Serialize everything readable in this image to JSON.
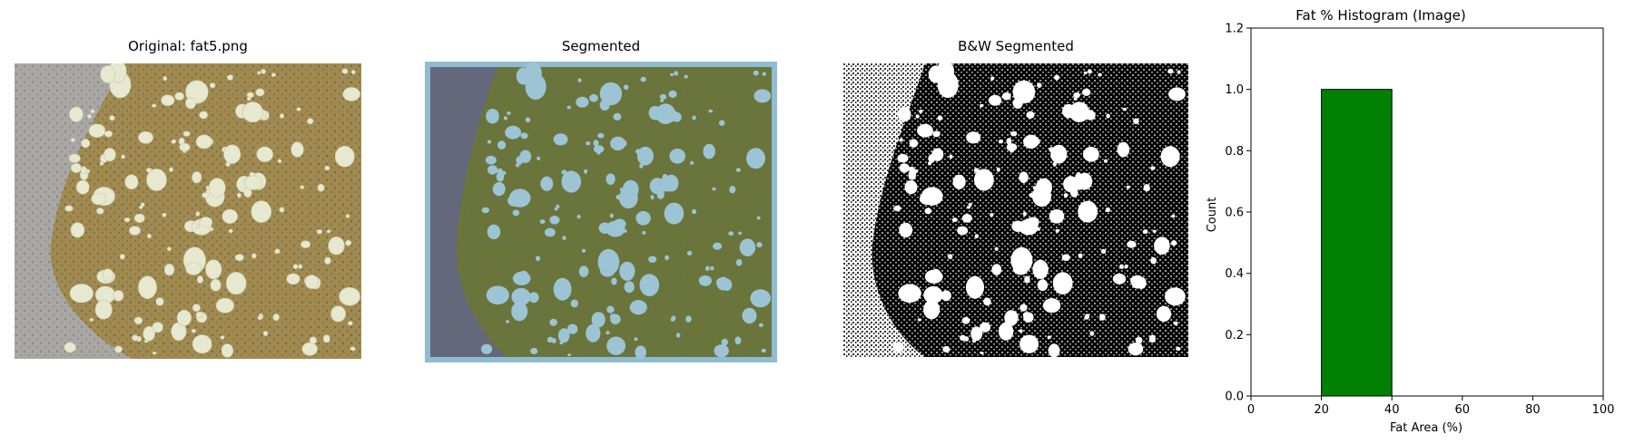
{
  "panels": {
    "original": {
      "title": "Original: fat5.png",
      "image": "liver-histology-original"
    },
    "segmented": {
      "title": "Segmented",
      "image": "liver-histology-segmented",
      "colors": {
        "background": "#6b7634",
        "border": "#8fbcd2",
        "fat": "#9cc4d4",
        "other": "#5e5fb0"
      }
    },
    "bw": {
      "title": "B&W Segmented",
      "image": "liver-histology-bw-mask"
    }
  },
  "chart_data": {
    "type": "bar",
    "title": "Fat % Histogram (Image)",
    "xlabel": "Fat Area (%)",
    "ylabel": "Count",
    "bins": [
      [
        20,
        40
      ]
    ],
    "values": [
      1.0
    ],
    "xlim": [
      0,
      100
    ],
    "ylim": [
      0,
      1.2
    ],
    "xticks": [
      "0",
      "20",
      "40",
      "60",
      "80",
      "100"
    ],
    "yticks": [
      "0.0",
      "0.2",
      "0.4",
      "0.6",
      "0.8",
      "1.0",
      "1.2"
    ],
    "bar_color": "#008000",
    "grid": false
  }
}
